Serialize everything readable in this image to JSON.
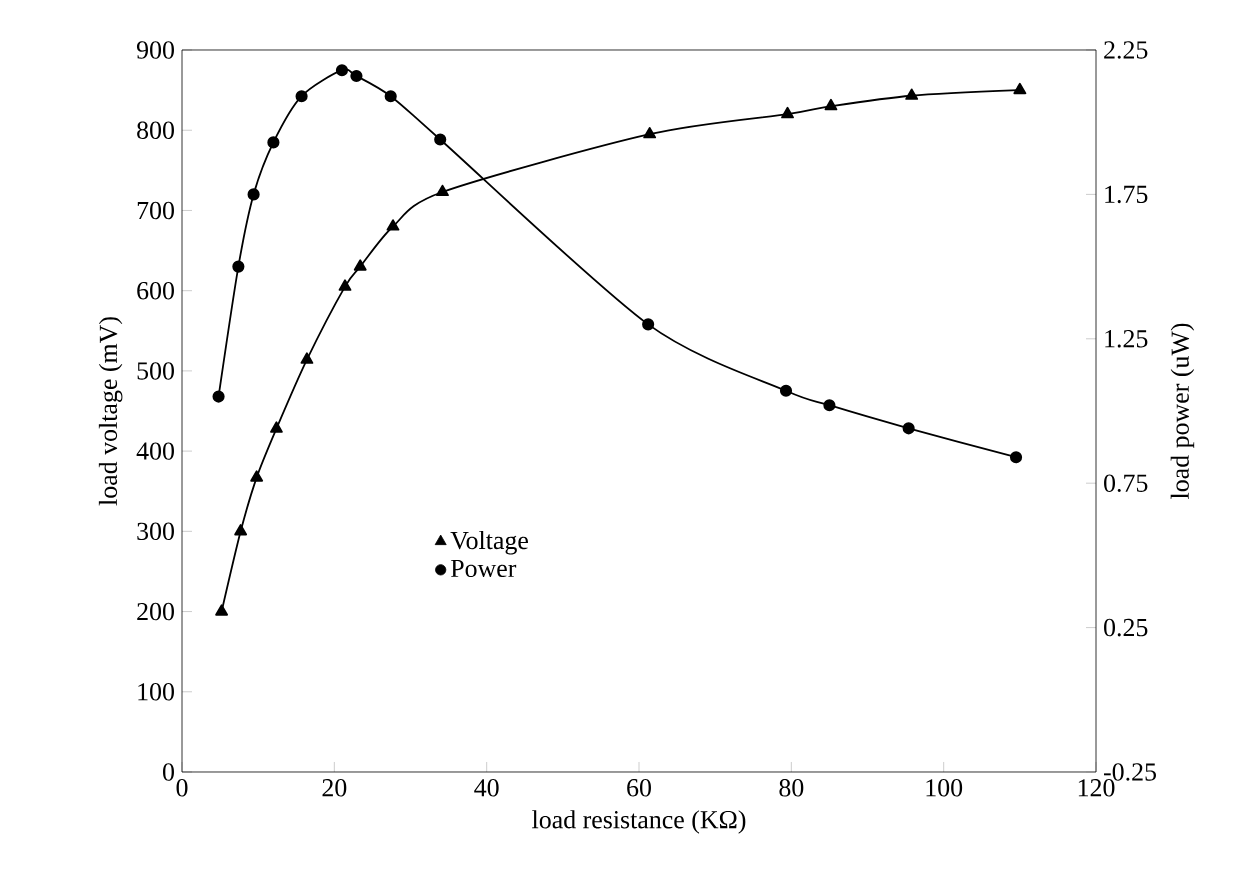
{
  "chart_data": {
    "type": "line",
    "xlabel": "load resistance (KΩ)",
    "ylabel": "load voltage (mV)",
    "y2label": "load power (uW)",
    "xlim": [
      0,
      120
    ],
    "xticks": [
      0,
      20,
      40,
      60,
      80,
      100,
      120
    ],
    "ylim": [
      0,
      900
    ],
    "yticks": [
      0,
      100,
      200,
      300,
      400,
      500,
      600,
      700,
      800,
      900
    ],
    "y2lim": [
      -0.25,
      2.25
    ],
    "y2ticks": [
      -0.25,
      0.25,
      0.75,
      1.25,
      1.75,
      2.25
    ],
    "legend": "left",
    "grid": false,
    "line_style": "solid",
    "series": [
      {
        "name": "Voltage",
        "color": "#000000",
        "marker": "triangle",
        "x": [
          5.2,
          7.7,
          9.8,
          12.4,
          16.4,
          21.4,
          23.4,
          27.7,
          34.2,
          61.4,
          79.5,
          85.2,
          95.8,
          110
        ],
        "values": [
          200,
          300,
          367,
          428,
          514,
          605,
          630,
          680,
          723,
          795,
          820,
          830,
          843,
          850
        ]
      },
      {
        "name": "Power",
        "color": "#000000",
        "marker": "circle",
        "axis": "y2",
        "x": [
          4.8,
          7.4,
          9.4,
          12.0,
          15.7,
          21.0,
          22.9,
          27.4,
          33.9,
          61.2,
          79.3,
          85.0,
          95.4,
          109.5
        ],
        "values": [
          1.05,
          1.5,
          1.75,
          1.93,
          2.09,
          2.18,
          2.16,
          2.09,
          1.94,
          1.3,
          1.07,
          1.02,
          0.94,
          0.84
        ]
      }
    ]
  }
}
